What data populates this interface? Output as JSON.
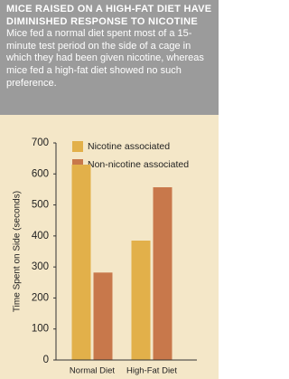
{
  "chart_data": {
    "type": "bar",
    "title": "MICE RAISED ON A HIGH-FAT DIET HAVE DIMINISHED RESPONSE TO NICOTINE",
    "subtitle": "Mice fed a normal diet spent most of a 15-minute test period on the side of a cage in which they had been given nicotine, whereas mice fed a high-fat diet showed no such preference.",
    "y_label": "Time Spent on Side (seconds)",
    "categories": [
      "Normal Diet",
      "High-Fat Diet"
    ],
    "series": [
      {
        "name": "Nicotine associated",
        "color": "#e2b04a",
        "values": [
          630,
          385
        ]
      },
      {
        "name": "Non-nicotine associated",
        "color": "#c8784b",
        "values": [
          282,
          557
        ]
      }
    ],
    "ylim": [
      0,
      700
    ],
    "yticks": [
      0,
      100,
      200,
      300,
      400,
      500,
      600,
      700
    ]
  }
}
